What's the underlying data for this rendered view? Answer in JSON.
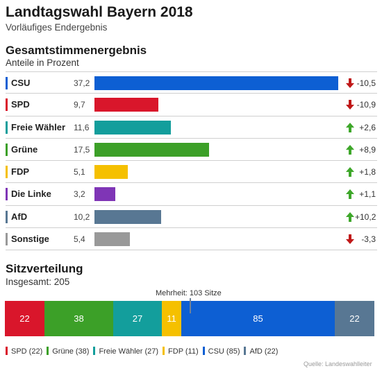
{
  "header": {
    "title": "Landtagswahl Bayern 2018",
    "subtitle": "Vorläufiges Endergebnis"
  },
  "chart_data": [
    {
      "type": "bar",
      "title": "Gesamtstimmenergebnis",
      "subtitle": "Anteile in Prozent",
      "xlim": [
        0,
        37.2
      ],
      "rows": [
        {
          "party": "CSU",
          "value": 37.2,
          "value_label": "37,2",
          "change": -10.5,
          "change_label": "-10,5",
          "color": "#0d5fd3"
        },
        {
          "party": "SPD",
          "value": 9.7,
          "value_label": "9,7",
          "change": -10.9,
          "change_label": "-10,9",
          "color": "#d9162b"
        },
        {
          "party": "Freie Wähler",
          "value": 11.6,
          "value_label": "11,6",
          "change": 2.6,
          "change_label": "+2,6",
          "color": "#139e9c"
        },
        {
          "party": "Grüne",
          "value": 17.5,
          "value_label": "17,5",
          "change": 8.9,
          "change_label": "+8,9",
          "color": "#3ca028"
        },
        {
          "party": "FDP",
          "value": 5.1,
          "value_label": "5,1",
          "change": 1.8,
          "change_label": "+1,8",
          "color": "#f5c000"
        },
        {
          "party": "Die Linke",
          "value": 3.2,
          "value_label": "3,2",
          "change": 1.1,
          "change_label": "+1,1",
          "color": "#7f35b6"
        },
        {
          "party": "AfD",
          "value": 10.2,
          "value_label": "10,2",
          "change": 10.2,
          "change_label": "+10,2",
          "color": "#587793"
        },
        {
          "party": "Sonstige",
          "value": 5.4,
          "value_label": "5,4",
          "change": -3.3,
          "change_label": "-3,3",
          "color": "#999999"
        }
      ]
    },
    {
      "type": "bar",
      "stacked": true,
      "title": "Sitzverteilung",
      "subtitle": "Insgesamt: 205",
      "total": 205,
      "majority": 103,
      "majority_label": "Mehrheit: 103 Sitze",
      "segments": [
        {
          "party": "SPD",
          "seats": 22,
          "color": "#d9162b"
        },
        {
          "party": "Grüne",
          "seats": 38,
          "color": "#3ca028"
        },
        {
          "party": "Freie Wähler",
          "seats": 27,
          "color": "#139e9c"
        },
        {
          "party": "FDP",
          "seats": 11,
          "color": "#f5c000"
        },
        {
          "party": "CSU",
          "seats": 85,
          "color": "#0d5fd3"
        },
        {
          "party": "AfD",
          "seats": 22,
          "color": "#587793"
        }
      ],
      "legend": [
        "SPD (22)",
        "Grüne (38)",
        "Freie Wähler (27)",
        "FDP (11)",
        "CSU (85)",
        "AfD (22)"
      ]
    }
  ],
  "colors": {
    "arrow_up": "#3ea72a",
    "arrow_down": "#c01818"
  },
  "source": "Quelle: Landeswahlleiter"
}
